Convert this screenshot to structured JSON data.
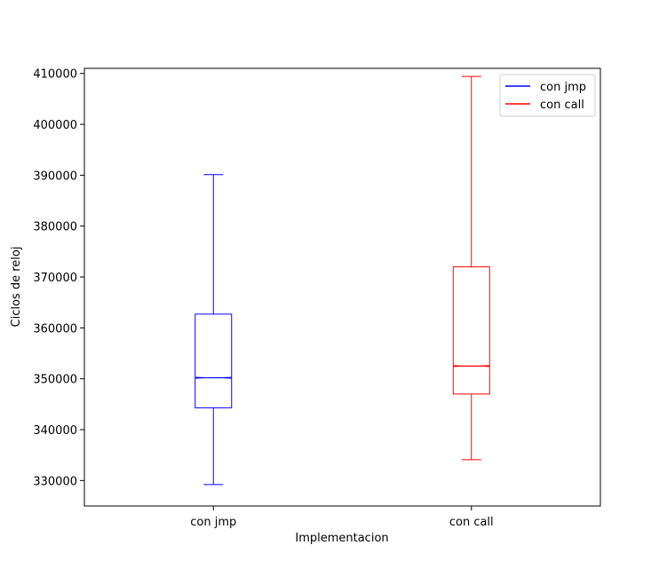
{
  "chart_data": {
    "type": "boxplot",
    "xlabel": "Implementacion",
    "ylabel": "Ciclos de reloj",
    "ylim": [
      325000,
      411000
    ],
    "yticks": [
      330000,
      340000,
      350000,
      360000,
      370000,
      380000,
      390000,
      400000,
      410000
    ],
    "categories": [
      "con jmp",
      "con call"
    ],
    "legend": {
      "position": "upper-right",
      "entries": [
        "con jmp",
        "con call"
      ]
    },
    "grid": false,
    "series": [
      {
        "name": "con jmp",
        "color": "#0000ff",
        "whisker_low": 329200,
        "q1": 344300,
        "median": 350200,
        "q3": 362700,
        "whisker_high": 390100,
        "notched": true
      },
      {
        "name": "con call",
        "color": "#ff0000",
        "whisker_low": 334100,
        "q1": 347000,
        "median": 352500,
        "q3": 372000,
        "whisker_high": 409400,
        "notched": true
      }
    ]
  }
}
